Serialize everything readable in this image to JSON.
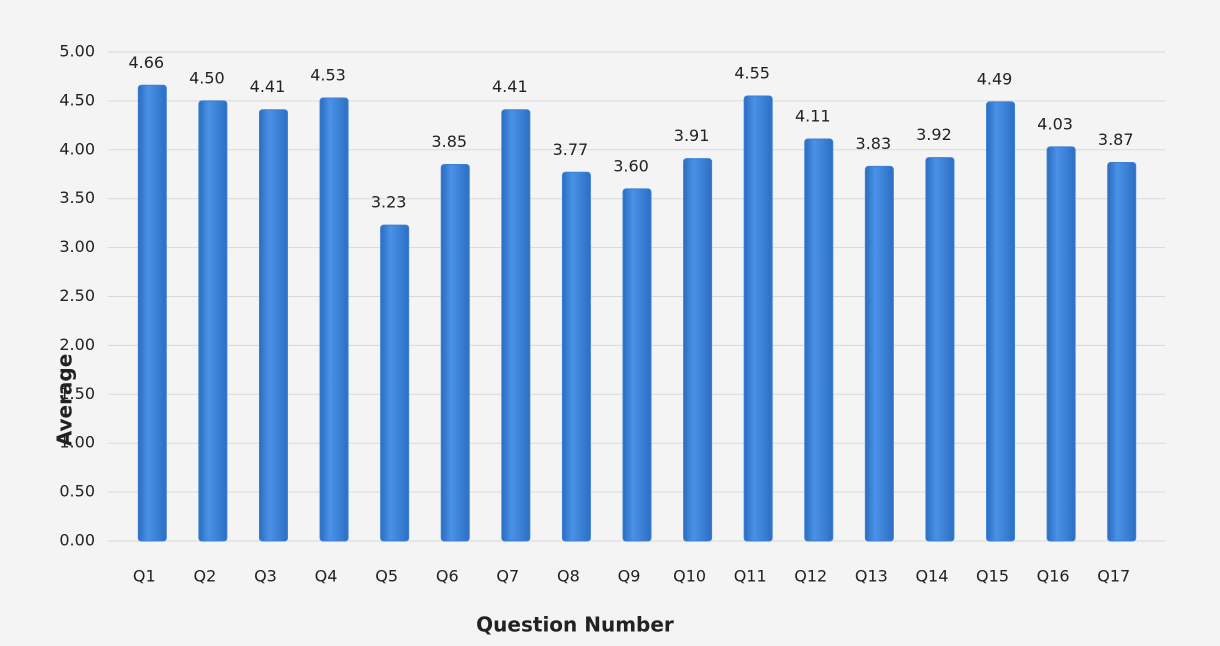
{
  "chart_data": {
    "type": "bar",
    "x_label": "Question Number",
    "y_label": "Average",
    "categories": [
      "Q1",
      "Q2",
      "Q3",
      "Q4",
      "Q5",
      "Q6",
      "Q7",
      "Q8",
      "Q9",
      "Q10",
      "Q11",
      "Q12",
      "Q13",
      "Q14",
      "Q15",
      "Q16",
      "Q17"
    ],
    "values": [
      4.66,
      4.5,
      4.41,
      4.53,
      3.23,
      3.85,
      4.41,
      3.77,
      3.6,
      3.91,
      4.55,
      4.11,
      3.83,
      3.92,
      4.49,
      4.03,
      3.87
    ],
    "value_labels": [
      "4.66",
      "4.50",
      "4.41",
      "4.53",
      "3.23",
      "3.85",
      "4.41",
      "3.77",
      "3.60",
      "3.91",
      "4.55",
      "4.11",
      "3.83",
      "3.92",
      "4.49",
      "4.03",
      "3.87"
    ],
    "color": "#3a80d6",
    "ylim": [
      0,
      5
    ],
    "yticks": [
      {
        "value": 0,
        "label": "0.00"
      },
      {
        "value": 0.5,
        "label": "0.50"
      },
      {
        "value": 1,
        "label": "1.00"
      },
      {
        "value": 1.5,
        "label": "1.50"
      },
      {
        "value": 2,
        "label": "2.00"
      },
      {
        "value": 2.5,
        "label": "2.50"
      },
      {
        "value": 3,
        "label": "3.00"
      },
      {
        "value": 3.5,
        "label": "3.50"
      },
      {
        "value": 4,
        "label": "4.00"
      },
      {
        "value": 4.5,
        "label": "4.50"
      },
      {
        "value": 5,
        "label": "5.00"
      }
    ],
    "grid": true
  }
}
